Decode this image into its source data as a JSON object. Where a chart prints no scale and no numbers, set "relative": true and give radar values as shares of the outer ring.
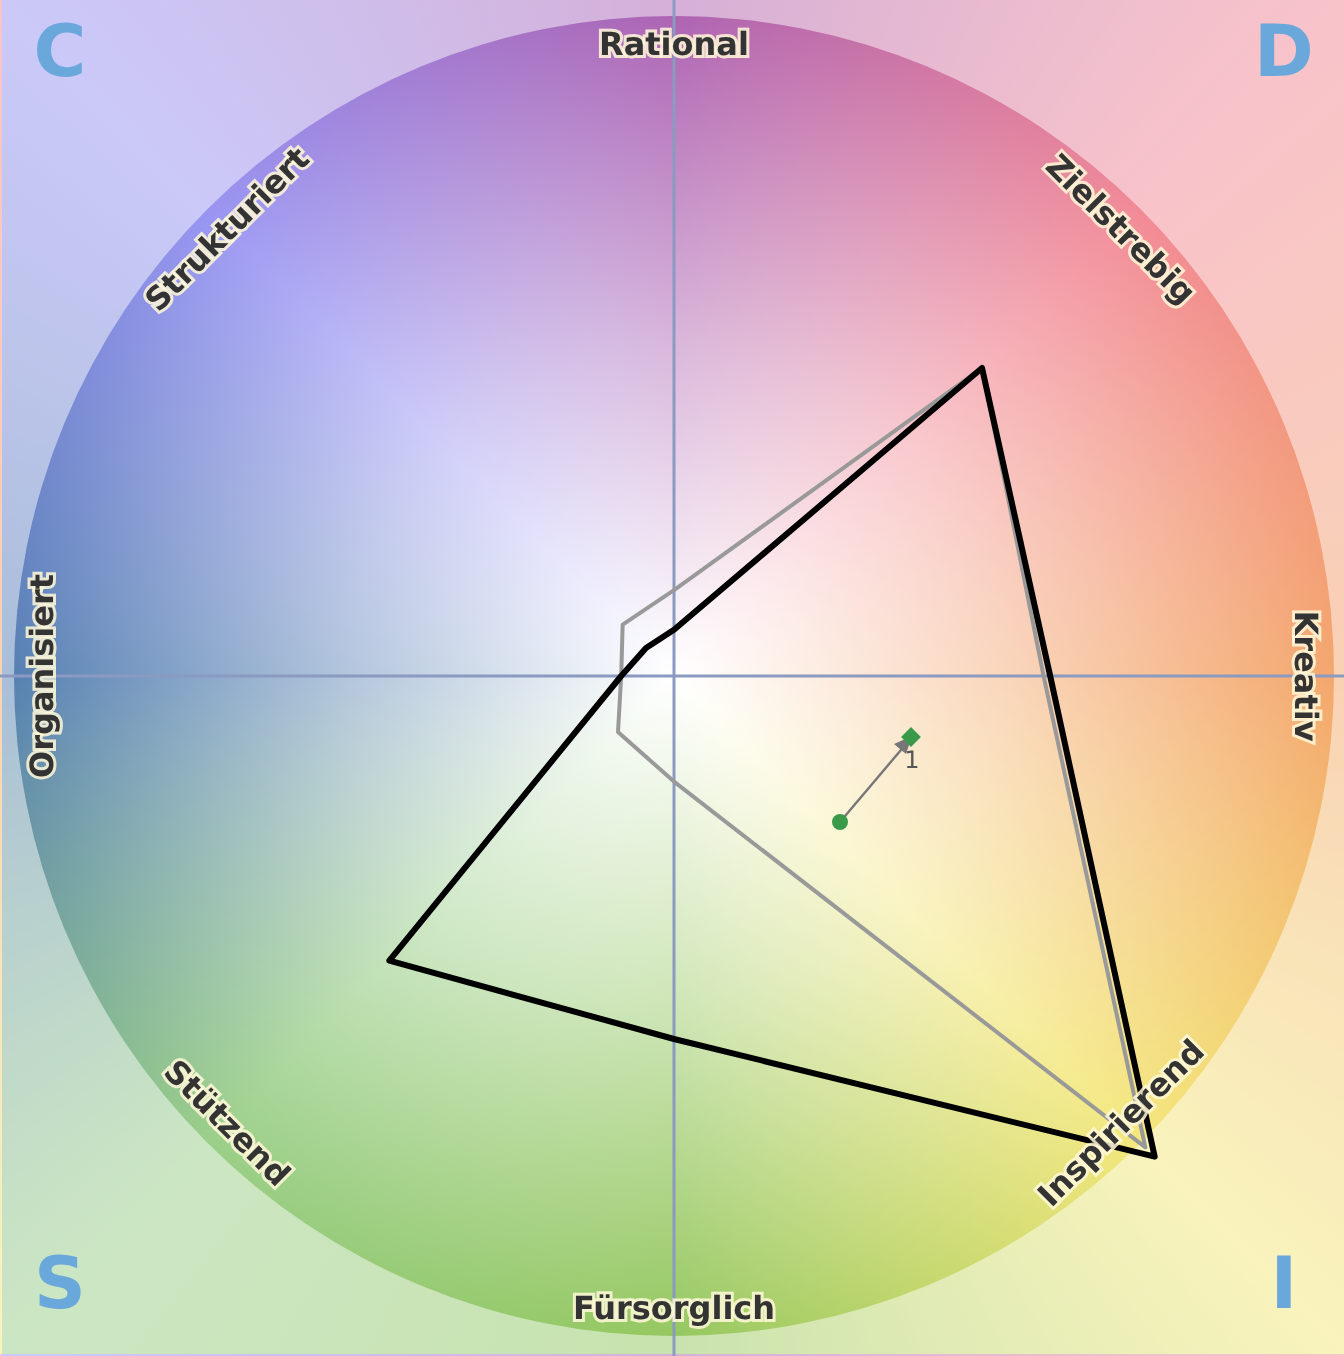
{
  "chart_data": {
    "type": "radar",
    "relative": true,
    "categories": [
      "Rational",
      "Zielstrebig",
      "Kreativ",
      "Inspirierend",
      "Fürsorglich",
      "Stützend",
      "Organisiert",
      "Strukturiert"
    ],
    "series": [
      {
        "color": "#999999",
        "values": [
          0.13,
          0.66,
          0.56,
          1.01,
          0.16,
          0.12,
          0.08,
          0.11
        ]
      },
      {
        "color": "#000000",
        "values": [
          0.07,
          0.66,
          0.57,
          1.03,
          0.55,
          0.61,
          0.08,
          0.06
        ]
      }
    ],
    "marker": "none",
    "annotations": [
      "C",
      "D",
      "S",
      "I",
      "1"
    ]
  }
}
